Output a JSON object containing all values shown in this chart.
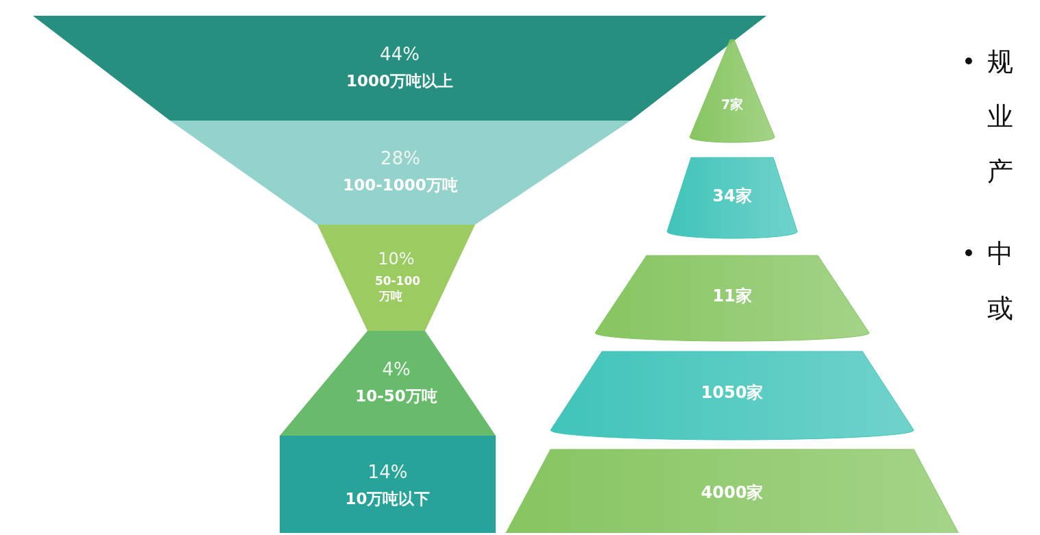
{
  "chart_data": [
    {
      "type": "other",
      "categories": [
        "1000万吨以上",
        "100-1000万吨",
        "50-100万吨",
        "10-50万吨",
        "10万吨以下"
      ],
      "values": [
        44,
        28,
        10,
        4,
        14
      ],
      "value_labels": [
        "44%",
        "28%",
        "10%",
        "4%",
        "14%"
      ],
      "colors": [
        "#268f80",
        "#93d3cc",
        "#9ccb61",
        "#68bb6a",
        "#27a39a"
      ]
    },
    {
      "type": "other",
      "values": [
        7,
        34,
        11,
        1050,
        4000
      ],
      "value_labels": [
        "7家",
        "34家",
        "11家",
        "1050家",
        "4000家"
      ],
      "colors": [
        "#86c560",
        "#40c4b9",
        "#86c560",
        "#40c4b9",
        "#86c560"
      ],
      "annotations": [
        "规",
        "业",
        "产",
        "中",
        "或"
      ]
    }
  ]
}
